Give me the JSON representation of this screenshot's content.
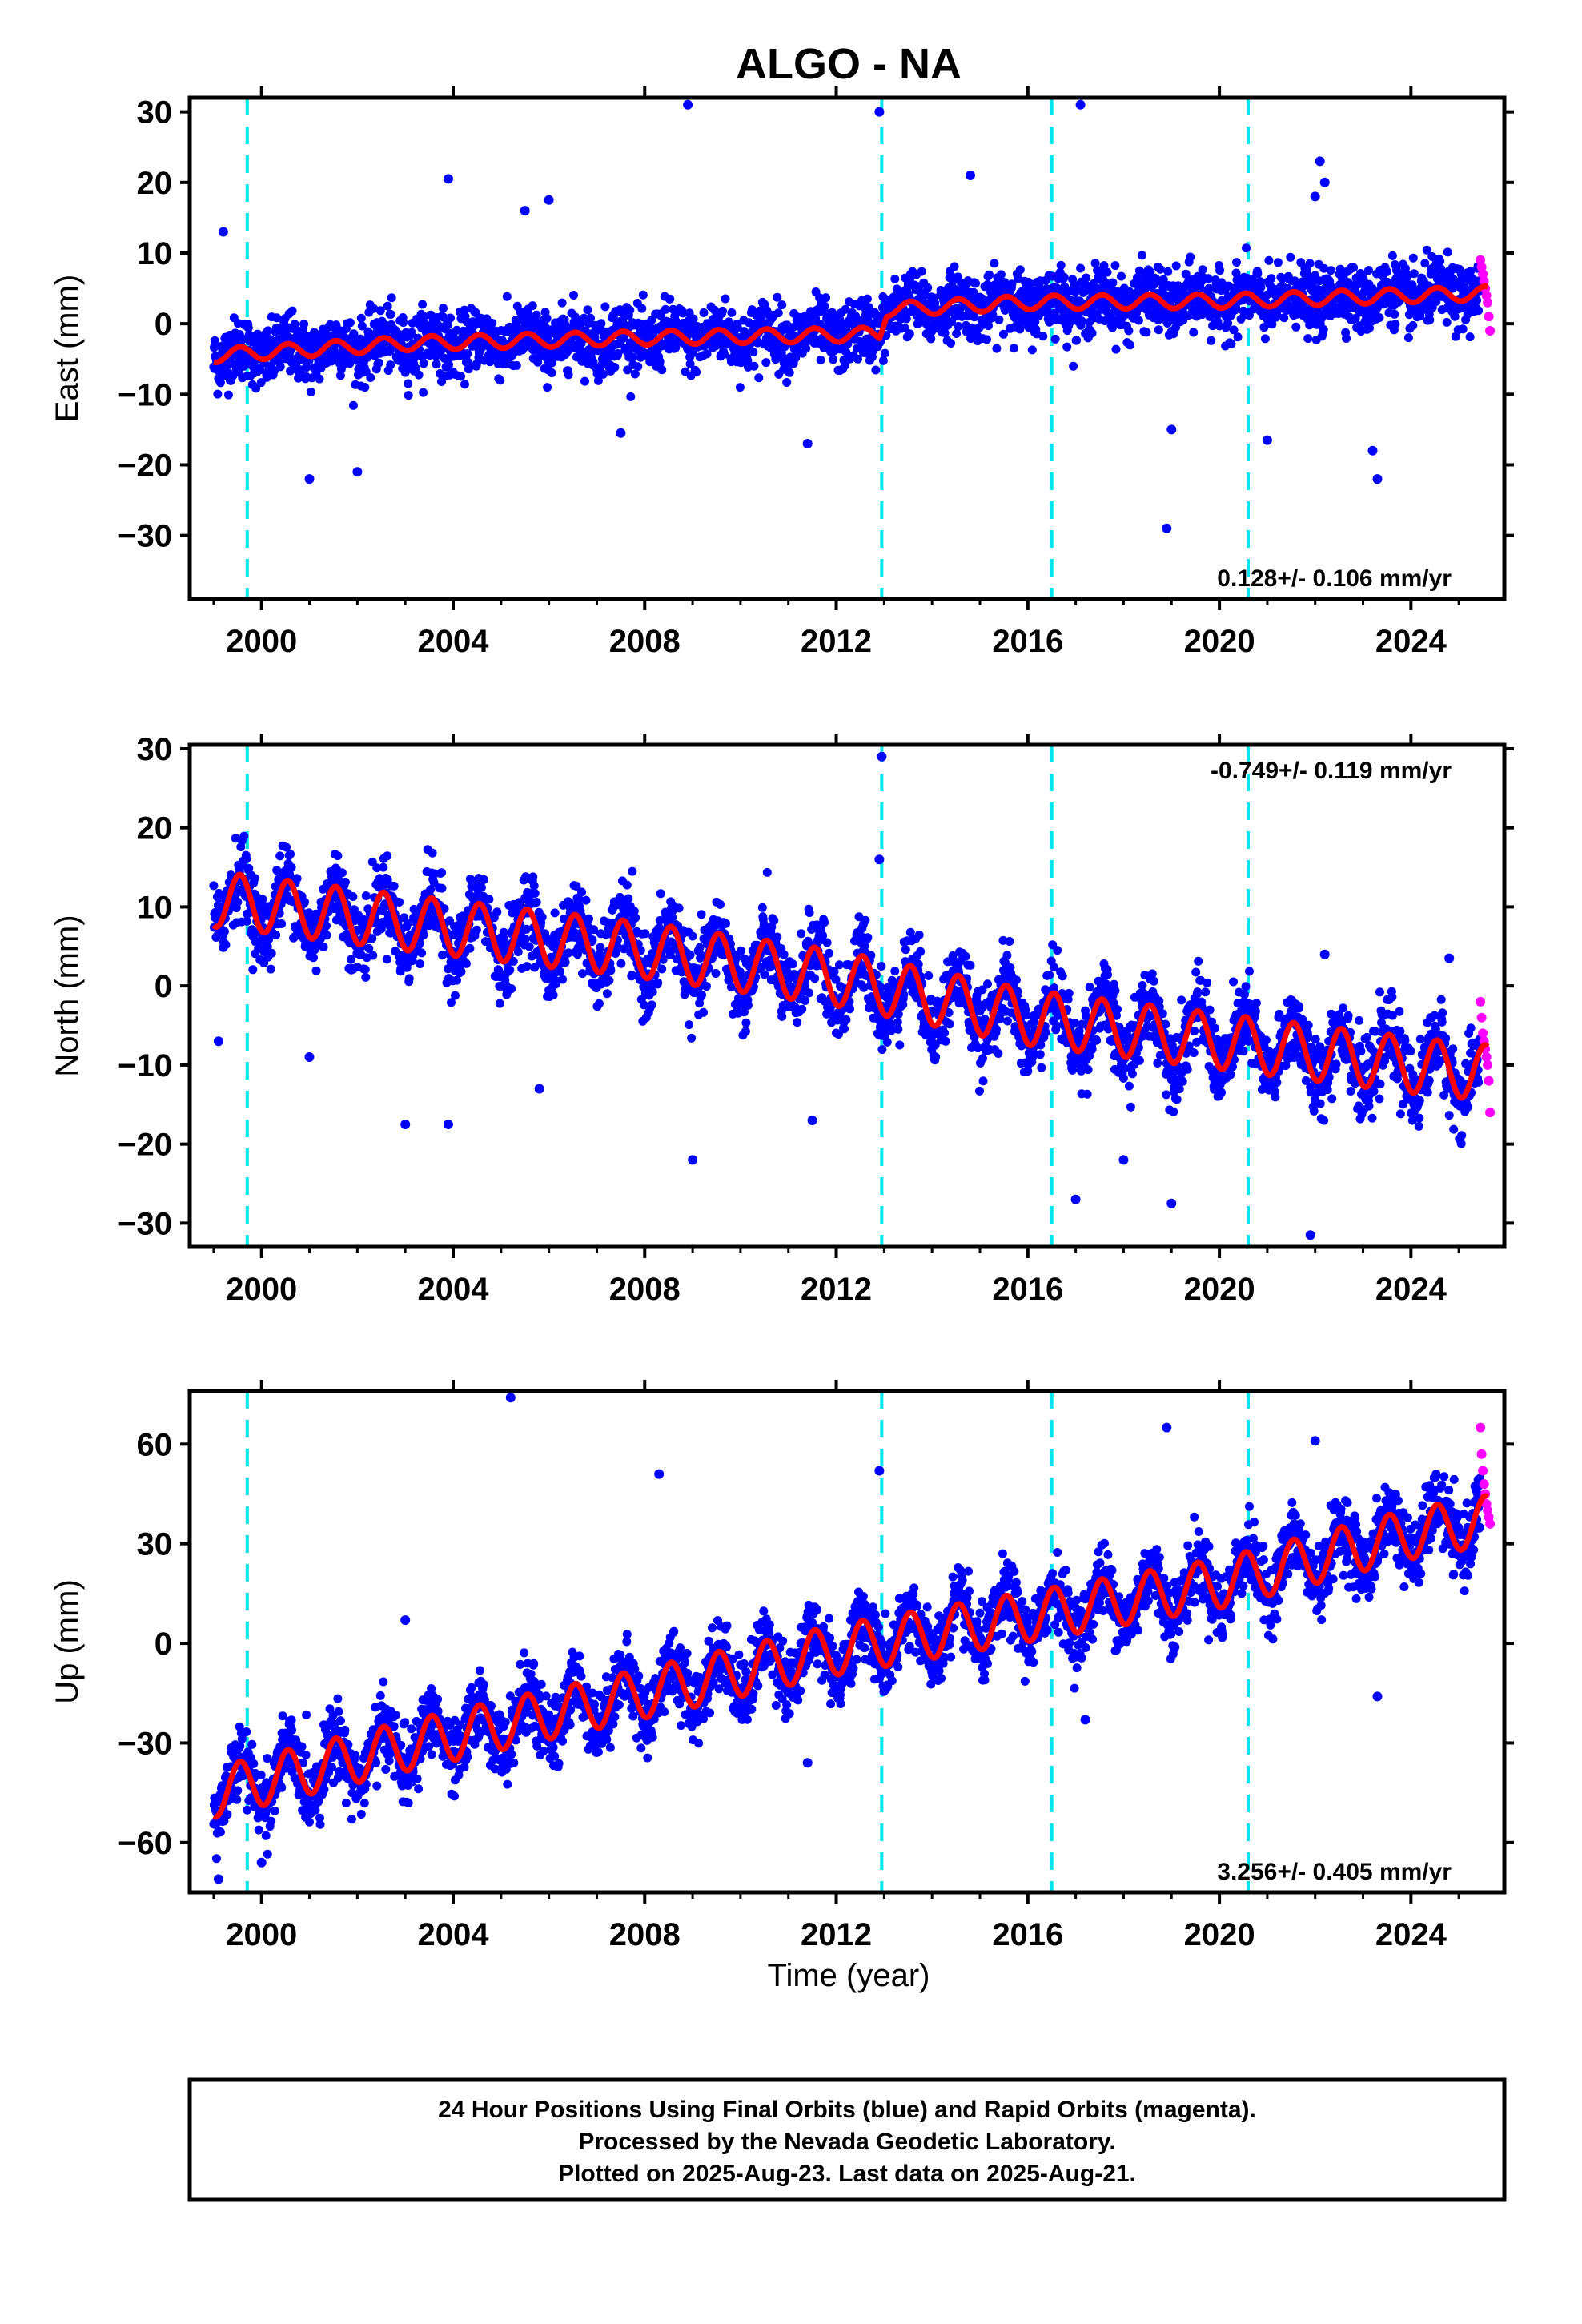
{
  "chart_data": {
    "type": "scatter",
    "title": "ALGO - NA",
    "xlabel": "Time (year)",
    "xlim": [
      1998.5,
      2025.95
    ],
    "x_ticks": [
      "2000",
      "2004",
      "2008",
      "2012",
      "2016",
      "2020",
      "2024"
    ],
    "x_tick_values": [
      2000,
      2004,
      2008,
      2012,
      2016,
      2020,
      2024
    ],
    "offset_lines": [
      1999.7,
      2012.95,
      2016.5,
      2020.6
    ],
    "colors": {
      "final_orbits": "#0000ff",
      "rapid_orbits": "#ff00ff",
      "model_fit": "#ff0000",
      "offset_line": "#00e5ee"
    },
    "panels": [
      {
        "name": "east",
        "ylabel": "East (mm)",
        "ylim": [
          -39,
          32
        ],
        "y_ticks": [
          "30",
          "20",
          "10",
          "0",
          "−10",
          "−20",
          "−30"
        ],
        "y_tick_values": [
          30,
          20,
          10,
          0,
          -10,
          -20,
          -30
        ],
        "rate_text": "0.128+/- 0.106 mm/yr",
        "rate_position": "bottom-right",
        "model_anchors": {
          "x": [
            1999.0,
            2003.0,
            2008.0,
            2012.9,
            2013.05,
            2016.0,
            2020.0,
            2024.0,
            2025.6
          ],
          "y": [
            -4.5,
            -2.8,
            -2.0,
            -1.5,
            2.0,
            3.0,
            3.2,
            4.0,
            4.3
          ]
        },
        "seasonal_amplitude": 1.0,
        "scatter_sigma": 2.2,
        "outliers": [
          {
            "x": 2008.9,
            "y": 31
          },
          {
            "x": 2012.9,
            "y": 30
          },
          {
            "x": 2017.1,
            "y": 31
          },
          {
            "x": 2003.9,
            "y": 20.5
          },
          {
            "x": 2014.8,
            "y": 21
          },
          {
            "x": 2022.1,
            "y": 23
          },
          {
            "x": 2022.2,
            "y": 20
          },
          {
            "x": 2022.0,
            "y": 18
          },
          {
            "x": 2018.9,
            "y": -29
          },
          {
            "x": 2001.0,
            "y": -22
          },
          {
            "x": 2002.0,
            "y": -21
          },
          {
            "x": 2023.3,
            "y": -22
          },
          {
            "x": 2023.2,
            "y": -18
          },
          {
            "x": 2019.0,
            "y": -15
          },
          {
            "x": 2021.0,
            "y": -16.5
          },
          {
            "x": 1999.2,
            "y": 13
          },
          {
            "x": 2005.5,
            "y": 16
          },
          {
            "x": 2006.0,
            "y": 17.5
          },
          {
            "x": 2011.4,
            "y": -17
          },
          {
            "x": 2007.5,
            "y": -15.5
          }
        ]
      },
      {
        "name": "north",
        "ylabel": "North (mm)",
        "ylim": [
          -33,
          30.5
        ],
        "y_ticks": [
          "30",
          "20",
          "10",
          "0",
          "−10",
          "−20",
          "−30"
        ],
        "y_tick_values": [
          30,
          20,
          10,
          0,
          -10,
          -20,
          -30
        ],
        "rate_text": "-0.749+/- 0.119 mm/yr",
        "rate_position": "top-right",
        "model_anchors": {
          "x": [
            1999.0,
            2003.0,
            2008.0,
            2012.0,
            2016.0,
            2020.0,
            2024.0,
            2025.6
          ],
          "y": [
            11.0,
            8.0,
            4.5,
            1.0,
            -4.0,
            -7.0,
            -10.0,
            -11.0
          ]
        },
        "seasonal_amplitude": 3.5,
        "scatter_sigma": 2.4,
        "outliers": [
          {
            "x": 2012.95,
            "y": 29
          },
          {
            "x": 2012.9,
            "y": 16
          },
          {
            "x": 2022.2,
            "y": 4
          },
          {
            "x": 2024.8,
            "y": 3.5
          },
          {
            "x": 2021.9,
            "y": -31.5
          },
          {
            "x": 2019.0,
            "y": -27.5
          },
          {
            "x": 2017.0,
            "y": -27
          },
          {
            "x": 2003.9,
            "y": -17.5
          },
          {
            "x": 2003.0,
            "y": -17.5
          },
          {
            "x": 2009.0,
            "y": -22
          },
          {
            "x": 1999.1,
            "y": -7
          },
          {
            "x": 2001.0,
            "y": -9
          },
          {
            "x": 2005.8,
            "y": -13
          },
          {
            "x": 2011.5,
            "y": -17
          },
          {
            "x": 2018.0,
            "y": -22
          }
        ]
      },
      {
        "name": "up",
        "ylabel": "Up (mm)",
        "ylim": [
          -75,
          76
        ],
        "y_ticks": [
          "60",
          "30",
          "0",
          "−30",
          "−60"
        ],
        "y_tick_values": [
          60,
          30,
          0,
          -30,
          -60
        ],
        "rate_text": "3.256+/- 0.405 mm/yr",
        "rate_position": "bottom-right",
        "xlabel_shown": true,
        "model_anchors": {
          "x": [
            1999.0,
            2003.0,
            2008.0,
            2012.0,
            2016.0,
            2020.0,
            2024.0,
            2025.6
          ],
          "y": [
            -45.0,
            -31.0,
            -15.0,
            -2.0,
            8.0,
            18.0,
            33.0,
            37.0
          ]
        },
        "seasonal_amplitude": 7.5,
        "scatter_sigma": 5.2,
        "outliers": [
          {
            "x": 2005.2,
            "y": 74
          },
          {
            "x": 2008.3,
            "y": 51
          },
          {
            "x": 2012.9,
            "y": 52
          },
          {
            "x": 2018.9,
            "y": 65
          },
          {
            "x": 2022.0,
            "y": 61
          },
          {
            "x": 2023.3,
            "y": -16
          },
          {
            "x": 2017.2,
            "y": -23
          },
          {
            "x": 2011.4,
            "y": -36
          },
          {
            "x": 1999.1,
            "y": -71
          },
          {
            "x": 2003.0,
            "y": 7
          },
          {
            "x": 2000.0,
            "y": -66
          }
        ]
      }
    ],
    "rapid_points_x_range": [
      2025.45,
      2025.65
    ],
    "rapid_points": {
      "east": [
        9,
        8,
        7,
        6,
        5,
        4,
        3,
        1,
        -1
      ],
      "north": [
        -2,
        -4,
        -6,
        -7,
        -8,
        -9,
        -10,
        -12,
        -16
      ],
      "up": [
        65,
        57,
        52,
        48,
        45,
        42,
        40,
        38,
        36
      ]
    }
  },
  "caption": {
    "line1": "24 Hour Positions Using Final Orbits (blue) and Rapid Orbits (magenta).",
    "line2": "Processed by the Nevada Geodetic Laboratory.",
    "line3": "Plotted on 2025-Aug-23. Last data on 2025-Aug-21."
  }
}
